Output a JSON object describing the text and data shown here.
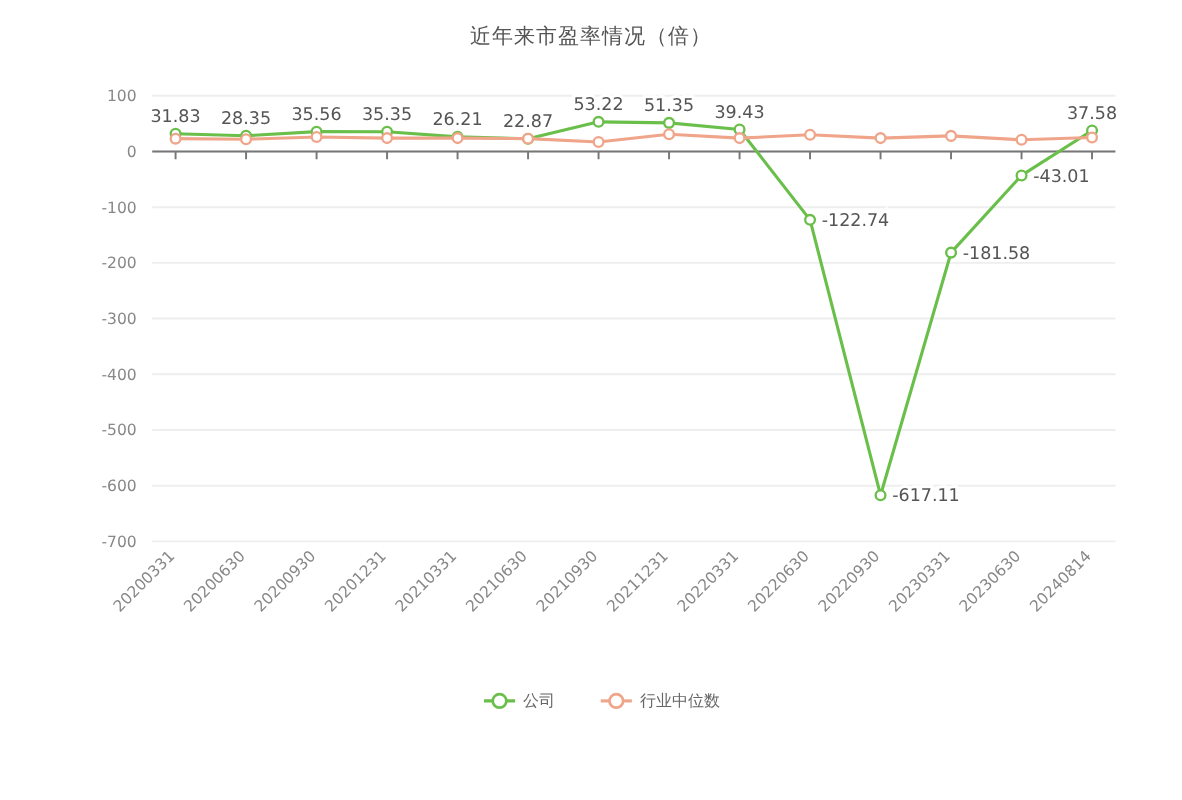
{
  "chart_data": {
    "type": "line",
    "title": "近年来市盈率情况（倍）",
    "categories": [
      "20200331",
      "20200630",
      "20200930",
      "20201231",
      "20210331",
      "20210630",
      "20210930",
      "20211231",
      "20220331",
      "20220630",
      "20220930",
      "20230331",
      "20230630",
      "20240814"
    ],
    "series": [
      {
        "name": "公司",
        "color": "#6abf4b",
        "values": [
          31.83,
          28.35,
          35.56,
          35.35,
          26.21,
          22.87,
          53.22,
          51.35,
          39.43,
          -122.74,
          -617.11,
          -181.58,
          -43.01,
          37.58
        ],
        "data_labels": true
      },
      {
        "name": "行业中位数",
        "color": "#f0a58a",
        "values": [
          23,
          22,
          26,
          24,
          24,
          23,
          17,
          31,
          24,
          30,
          24,
          28,
          21,
          25
        ]
      }
    ],
    "ylim": [
      -700,
      100
    ],
    "yticks": [
      -700,
      -600,
      -500,
      -400,
      -300,
      -200,
      -100,
      0,
      100
    ],
    "grid": "y",
    "legend": "bottom",
    "marker": "circle",
    "line_style": "solid"
  }
}
